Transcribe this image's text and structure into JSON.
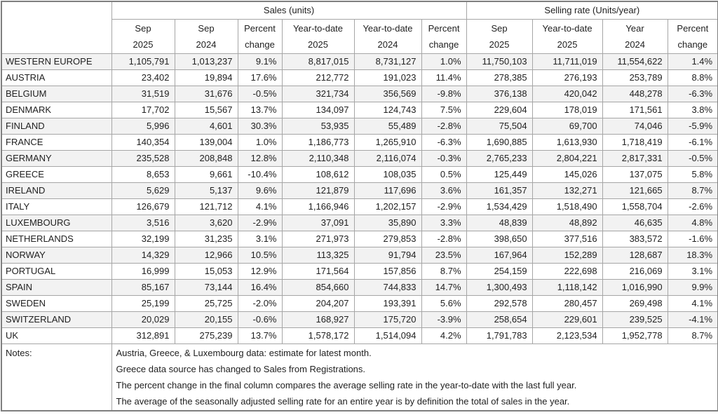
{
  "chart_data": {
    "type": "table",
    "group_headers": [
      "Sales (units)",
      "Selling rate (Units/year)"
    ],
    "columns": [
      {
        "line1": "Sep",
        "line2": "2025"
      },
      {
        "line1": "Sep",
        "line2": "2024"
      },
      {
        "line1": "Percent",
        "line2": "change"
      },
      {
        "line1": "Year-to-date",
        "line2": "2025"
      },
      {
        "line1": "Year-to-date",
        "line2": "2024"
      },
      {
        "line1": "Percent",
        "line2": "change"
      },
      {
        "line1": "Sep",
        "line2": "2025"
      },
      {
        "line1": "Year-to-date",
        "line2": "2025"
      },
      {
        "line1": "Year",
        "line2": "2024"
      },
      {
        "line1": "Percent",
        "line2": "change"
      }
    ],
    "rows": [
      {
        "country": "WESTERN EUROPE",
        "values": [
          "1,105,791",
          "1,013,237",
          "9.1%",
          "8,817,015",
          "8,731,127",
          "1.0%",
          "11,750,103",
          "11,711,019",
          "11,554,622",
          "1.4%"
        ]
      },
      {
        "country": "AUSTRIA",
        "values": [
          "23,402",
          "19,894",
          "17.6%",
          "212,772",
          "191,023",
          "11.4%",
          "278,385",
          "276,193",
          "253,789",
          "8.8%"
        ]
      },
      {
        "country": "BELGIUM",
        "values": [
          "31,519",
          "31,676",
          "-0.5%",
          "321,734",
          "356,569",
          "-9.8%",
          "376,138",
          "420,042",
          "448,278",
          "-6.3%"
        ]
      },
      {
        "country": "DENMARK",
        "values": [
          "17,702",
          "15,567",
          "13.7%",
          "134,097",
          "124,743",
          "7.5%",
          "229,604",
          "178,019",
          "171,561",
          "3.8%"
        ]
      },
      {
        "country": "FINLAND",
        "values": [
          "5,996",
          "4,601",
          "30.3%",
          "53,935",
          "55,489",
          "-2.8%",
          "75,504",
          "69,700",
          "74,046",
          "-5.9%"
        ]
      },
      {
        "country": "FRANCE",
        "values": [
          "140,354",
          "139,004",
          "1.0%",
          "1,186,773",
          "1,265,910",
          "-6.3%",
          "1,690,885",
          "1,613,930",
          "1,718,419",
          "-6.1%"
        ]
      },
      {
        "country": "GERMANY",
        "values": [
          "235,528",
          "208,848",
          "12.8%",
          "2,110,348",
          "2,116,074",
          "-0.3%",
          "2,765,233",
          "2,804,221",
          "2,817,331",
          "-0.5%"
        ]
      },
      {
        "country": "GREECE",
        "values": [
          "8,653",
          "9,661",
          "-10.4%",
          "108,612",
          "108,035",
          "0.5%",
          "125,449",
          "145,026",
          "137,075",
          "5.8%"
        ]
      },
      {
        "country": "IRELAND",
        "values": [
          "5,629",
          "5,137",
          "9.6%",
          "121,879",
          "117,696",
          "3.6%",
          "161,357",
          "132,271",
          "121,665",
          "8.7%"
        ]
      },
      {
        "country": "ITALY",
        "values": [
          "126,679",
          "121,712",
          "4.1%",
          "1,166,946",
          "1,202,157",
          "-2.9%",
          "1,534,429",
          "1,518,490",
          "1,558,704",
          "-2.6%"
        ]
      },
      {
        "country": "LUXEMBOURG",
        "values": [
          "3,516",
          "3,620",
          "-2.9%",
          "37,091",
          "35,890",
          "3.3%",
          "48,839",
          "48,892",
          "46,635",
          "4.8%"
        ]
      },
      {
        "country": "NETHERLANDS",
        "values": [
          "32,199",
          "31,235",
          "3.1%",
          "271,973",
          "279,853",
          "-2.8%",
          "398,650",
          "377,516",
          "383,572",
          "-1.6%"
        ]
      },
      {
        "country": "NORWAY",
        "values": [
          "14,329",
          "12,966",
          "10.5%",
          "113,325",
          "91,794",
          "23.5%",
          "167,964",
          "152,289",
          "128,687",
          "18.3%"
        ]
      },
      {
        "country": "PORTUGAL",
        "values": [
          "16,999",
          "15,053",
          "12.9%",
          "171,564",
          "157,856",
          "8.7%",
          "254,159",
          "222,698",
          "216,069",
          "3.1%"
        ]
      },
      {
        "country": "SPAIN",
        "values": [
          "85,167",
          "73,144",
          "16.4%",
          "854,660",
          "744,833",
          "14.7%",
          "1,300,493",
          "1,118,142",
          "1,016,990",
          "9.9%"
        ]
      },
      {
        "country": "SWEDEN",
        "values": [
          "25,199",
          "25,725",
          "-2.0%",
          "204,207",
          "193,391",
          "5.6%",
          "292,578",
          "280,457",
          "269,498",
          "4.1%"
        ]
      },
      {
        "country": "SWITZERLAND",
        "values": [
          "20,029",
          "20,155",
          "-0.6%",
          "168,927",
          "175,720",
          "-3.9%",
          "258,654",
          "229,601",
          "239,525",
          "-4.1%"
        ]
      },
      {
        "country": "UK",
        "values": [
          "312,891",
          "275,239",
          "13.7%",
          "1,578,172",
          "1,514,094",
          "4.2%",
          "1,791,783",
          "2,123,534",
          "1,952,778",
          "8.7%"
        ]
      }
    ]
  },
  "notes": {
    "label": "Notes:",
    "lines": [
      "Austria, Greece, & Luxembourg data: estimate for latest month.",
      "Greece data source has changed to Sales from Registrations.",
      "The percent change in the final column compares the average selling rate in the year-to-date with the last full year.",
      "The average of the seasonally adjusted selling rate for an entire year is by definition the total of sales in the year."
    ]
  },
  "colors": {
    "stripe": "#f2f2f2",
    "row_white": "#ffffff",
    "inner_border": "#a6a6a6",
    "outer_border": "#7f7f7f",
    "text": "#212121"
  }
}
